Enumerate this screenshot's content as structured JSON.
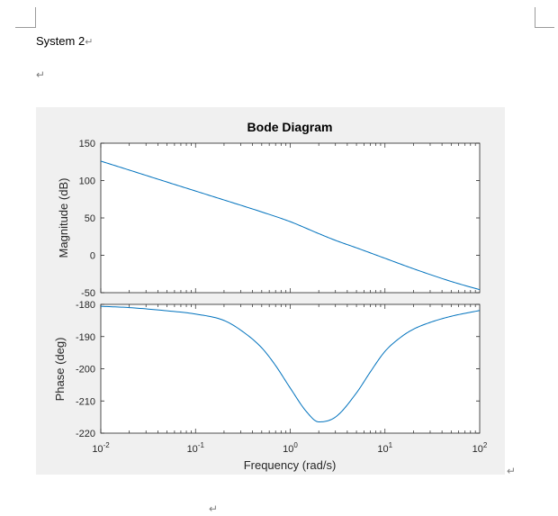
{
  "document": {
    "heading_text": "System 2",
    "paragraph_mark": "↵"
  },
  "chart_data": {
    "type": "line",
    "title": "Bode Diagram",
    "xlabel": "Frequency  (rad/s)",
    "xscale": "log",
    "xlim": [
      0.01,
      100
    ],
    "x_tick_bases": [
      "10",
      "10",
      "10",
      "10",
      "10"
    ],
    "x_tick_exponents": [
      "-2",
      "-1",
      "0",
      "1",
      "2"
    ],
    "x_tick_values": [
      0.01,
      0.1,
      1,
      10,
      100
    ],
    "line_color": "#0072bd",
    "grid": false,
    "panels": [
      {
        "name": "magnitude",
        "ylabel": "Magnitude (dB)",
        "ylim": [
          -50,
          150
        ],
        "y_ticks": [
          150,
          100,
          50,
          0,
          -50
        ],
        "y_tick_labels": [
          "150",
          "100",
          "50",
          "0",
          "-50"
        ],
        "series": [
          {
            "x": [
              0.01,
              0.02,
              0.05,
              0.1,
              0.2,
              0.5,
              1,
              2,
              3,
              5,
              10,
              20,
              50,
              100
            ],
            "y": [
              126,
              114,
              98,
              86,
              74,
              58,
              45,
              29,
              20,
              10,
              -4,
              -18,
              -35,
              -46
            ]
          }
        ]
      },
      {
        "name": "phase",
        "ylabel": "Phase (deg)",
        "ylim": [
          -220,
          -180
        ],
        "y_ticks": [
          -180,
          -190,
          -200,
          -210,
          -220
        ],
        "y_tick_labels": [
          "-180",
          "-190",
          "-200",
          "-210",
          "-220"
        ],
        "series": [
          {
            "x": [
              0.01,
              0.02,
              0.05,
              0.1,
              0.2,
              0.3,
              0.5,
              0.7,
              1,
              1.5,
              2,
              3,
              5,
              7,
              10,
              15,
              20,
              30,
              50,
              100
            ],
            "y": [
              -180.6,
              -181,
              -182,
              -183,
              -185,
              -188,
              -193.5,
              -199,
              -206,
              -213.5,
              -216.5,
              -215,
              -207.5,
              -201,
              -194.6,
              -190,
              -187.7,
              -185.6,
              -183.7,
              -181.9
            ]
          }
        ]
      }
    ]
  }
}
